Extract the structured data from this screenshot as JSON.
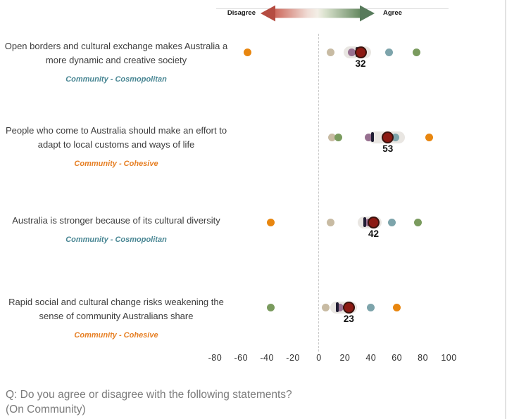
{
  "header": {
    "disagree_label": "Disagree",
    "agree_label": "Agree"
  },
  "footer": {
    "line1": "Q: Do you agree or disagree with the following statements?",
    "line2": "(On Community)"
  },
  "colors": {
    "orange": "#e8860f",
    "tan": "#c8bba3",
    "purple": "#977090",
    "teal": "#7da4ab",
    "green": "#7a9b5e",
    "main_fill": "#8c1a13",
    "main_border": "#3a120d",
    "tick": "#201d33",
    "band": "#e9e6e2",
    "segment_cosmopolitan": "#4a8794",
    "segment_cohesive": "#e67e22",
    "arrow_red": "#b54c41",
    "arrow_green": "#577a5b",
    "statement_text": "#3d3d3d",
    "axis_text": "#2f2f2f",
    "footer_text": "#7b7b7b"
  },
  "chart_data": {
    "type": "scatter",
    "title": "",
    "xlabel": "",
    "ylabel": "",
    "legend": "none",
    "x_axis": {
      "ticks": [
        -80,
        -60,
        -40,
        -20,
        0,
        20,
        40,
        60,
        80,
        100
      ],
      "range": [
        -90,
        110
      ],
      "zero_reference_line": true
    },
    "rows": [
      {
        "statement": "Open borders and cultural exchange makes Australia a more dynamic and creative society",
        "segment": "Community - Cosmopolitan",
        "segment_type": "cosmopolitan",
        "main_value": 32,
        "main_label": "32",
        "tick_value": 29,
        "band": [
          21,
          38
        ],
        "dots": [
          {
            "series": "orange",
            "value": -55
          },
          {
            "series": "tan",
            "value": 9
          },
          {
            "series": "purple",
            "value": 25
          },
          {
            "series": "teal",
            "value": 54
          },
          {
            "series": "green",
            "value": 75
          }
        ]
      },
      {
        "statement": "People who come to Australia should make an effort to adapt to local customs and ways of life",
        "segment": "Community - Cohesive",
        "segment_type": "cohesive",
        "main_value": 53,
        "main_label": "53",
        "tick_value": 41,
        "band": [
          40,
          64
        ],
        "dots": [
          {
            "series": "tan",
            "value": 10
          },
          {
            "series": "green",
            "value": 15
          },
          {
            "series": "purple",
            "value": 38
          },
          {
            "series": "teal",
            "value": 59
          },
          {
            "series": "orange",
            "value": 85
          }
        ]
      },
      {
        "statement": "Australia is stronger because of its cultural diversity",
        "segment": "Community - Cosmopolitan",
        "segment_type": "cosmopolitan",
        "main_value": 42,
        "main_label": "42",
        "tick_value": 35,
        "band": [
          32,
          46
        ],
        "dots": [
          {
            "series": "orange",
            "value": -37
          },
          {
            "series": "tan",
            "value": 9
          },
          {
            "series": "purple",
            "value": 38
          },
          {
            "series": "teal",
            "value": 56
          },
          {
            "series": "green",
            "value": 76
          }
        ]
      },
      {
        "statement": "Rapid social and cultural change risks weakening the sense of community Australians share",
        "segment": "Community - Cohesive",
        "segment_type": "cohesive",
        "main_value": 23,
        "main_label": "23",
        "tick_value": 14,
        "band": [
          11,
          27
        ],
        "dots": [
          {
            "series": "green",
            "value": -37
          },
          {
            "series": "tan",
            "value": 5
          },
          {
            "series": "purple",
            "value": 16
          },
          {
            "series": "teal",
            "value": 40
          },
          {
            "series": "orange",
            "value": 60
          }
        ]
      }
    ]
  }
}
